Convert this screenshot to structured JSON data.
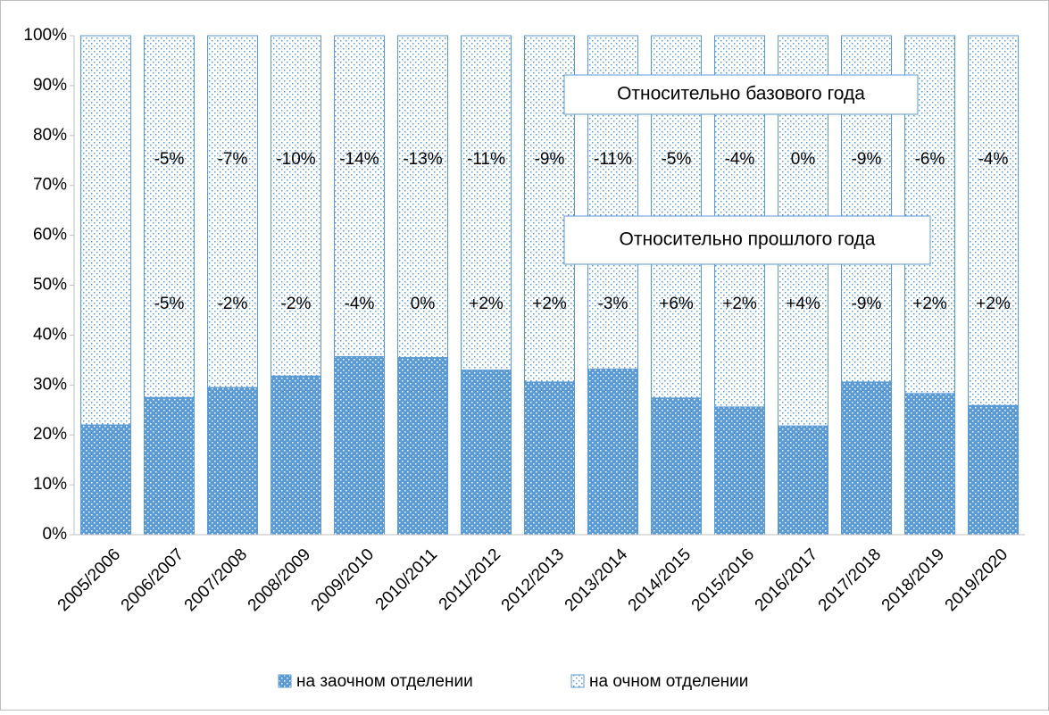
{
  "chart_data": {
    "type": "stacked_bar",
    "categories": [
      "2005/2006",
      "2006/2007",
      "2007/2008",
      "2008/2009",
      "2009/2010",
      "2010/2011",
      "2011/2012",
      "2012/2013",
      "2013/2014",
      "2014/2015",
      "2015/2016",
      "2016/2017",
      "2017/2018",
      "2018/2019",
      "2019/2020"
    ],
    "series": [
      {
        "name": "на заочном отделении",
        "color": "#5b9bd5",
        "values": [
          22,
          27.5,
          29.5,
          31.8,
          35.7,
          35.5,
          33,
          30.6,
          33.2,
          27.4,
          25.6,
          21.8,
          30.6,
          28.3,
          25.9
        ]
      },
      {
        "name": "на очном отделении",
        "color": "#5b9bd5",
        "values": [
          78,
          72.5,
          70.5,
          68.2,
          64.3,
          64.5,
          67,
          69.4,
          66.8,
          72.6,
          74.4,
          78.2,
          69.4,
          71.7,
          74.1
        ]
      }
    ],
    "ylim": [
      0,
      100
    ],
    "yticks": [
      {
        "value": 0,
        "label": "0%"
      },
      {
        "value": 10,
        "label": "10%"
      },
      {
        "value": 20,
        "label": "20%"
      },
      {
        "value": 30,
        "label": "30%"
      },
      {
        "value": 40,
        "label": "40%"
      },
      {
        "value": 50,
        "label": "50%"
      },
      {
        "value": 60,
        "label": "60%"
      },
      {
        "value": 70,
        "label": "70%"
      },
      {
        "value": 80,
        "label": "80%"
      },
      {
        "value": 90,
        "label": "90%"
      },
      {
        "value": 100,
        "label": "100%"
      }
    ],
    "grid": false,
    "legend": "bottom",
    "annotation_base_label": "Относительно базового года",
    "annotation_prev_label": "Относительно прошлого года",
    "annotations_base": [
      null,
      "-5%",
      "-7%",
      "-10%",
      "-14%",
      "-13%",
      "-11%",
      "-9%",
      "-11%",
      "-5%",
      "-4%",
      "0%",
      "-9%",
      "-6%",
      "-4%"
    ],
    "annotations_prev": [
      null,
      "-5%",
      "-2%",
      "-2%",
      "-4%",
      "0%",
      "+2%",
      "+2%",
      "-3%",
      "+6%",
      "+2%",
      "+4%",
      "-9%",
      "+2%",
      "+2%"
    ]
  }
}
